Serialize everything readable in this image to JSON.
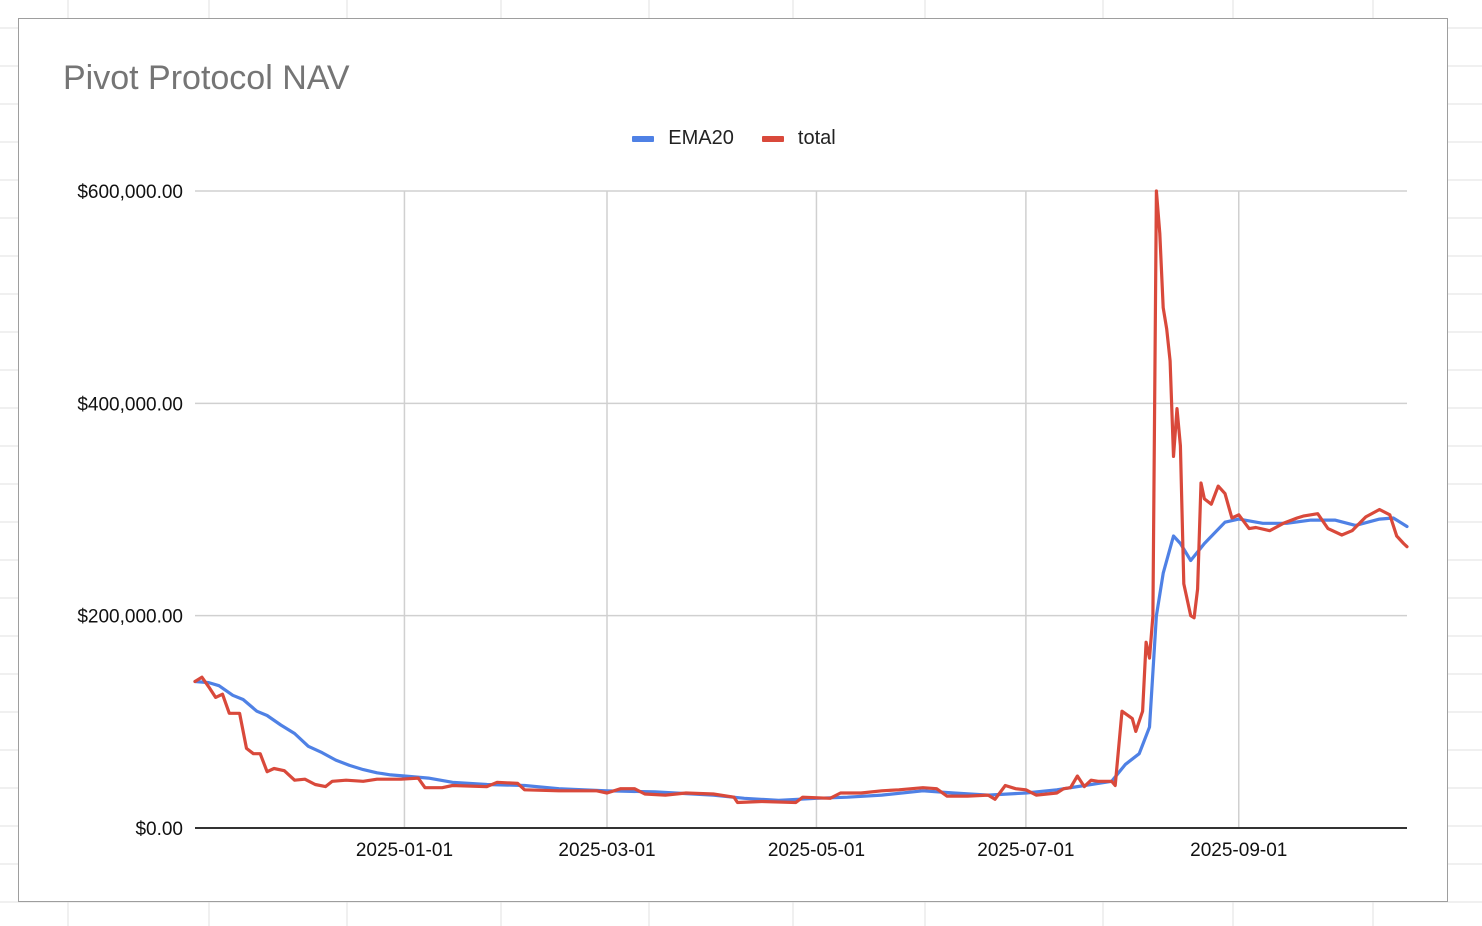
{
  "chart_data": {
    "type": "line",
    "title": "Pivot Protocol NAV",
    "xlabel": "",
    "ylabel": "",
    "x_range": [
      "2024-11-01",
      "2025-10-20"
    ],
    "ylim": [
      0,
      600000
    ],
    "y_ticks": [
      0,
      200000,
      400000,
      600000
    ],
    "y_tick_labels": [
      "$0.00",
      "$200,000.00",
      "$400,000.00",
      "$600,000.00"
    ],
    "x_ticks": [
      "2025-01-01",
      "2025-03-01",
      "2025-05-01",
      "2025-07-01",
      "2025-09-01"
    ],
    "x_tick_labels": [
      "2025-01-01",
      "2025-03-01",
      "2025-05-01",
      "2025-07-01",
      "2025-09-01"
    ],
    "grid": true,
    "legend_position": "top",
    "series": [
      {
        "name": "EMA20",
        "color": "#4f81e5",
        "points": [
          [
            "2024-11-01",
            138000
          ],
          [
            "2024-11-05",
            137000
          ],
          [
            "2024-11-08",
            134000
          ],
          [
            "2024-11-12",
            125000
          ],
          [
            "2024-11-15",
            121000
          ],
          [
            "2024-11-19",
            110000
          ],
          [
            "2024-11-22",
            106000
          ],
          [
            "2024-11-26",
            97000
          ],
          [
            "2024-11-30",
            89000
          ],
          [
            "2024-12-04",
            77000
          ],
          [
            "2024-12-08",
            71000
          ],
          [
            "2024-12-12",
            64000
          ],
          [
            "2024-12-16",
            59000
          ],
          [
            "2024-12-20",
            55000
          ],
          [
            "2024-12-24",
            52000
          ],
          [
            "2024-12-28",
            50000
          ],
          [
            "2025-01-01",
            49000
          ],
          [
            "2025-01-08",
            47000
          ],
          [
            "2025-01-15",
            43000
          ],
          [
            "2025-01-25",
            41000
          ],
          [
            "2025-02-05",
            40000
          ],
          [
            "2025-02-15",
            37000
          ],
          [
            "2025-03-01",
            35000
          ],
          [
            "2025-03-15",
            34000
          ],
          [
            "2025-04-01",
            31000
          ],
          [
            "2025-04-10",
            28000
          ],
          [
            "2025-04-20",
            26000
          ],
          [
            "2025-05-01",
            28000
          ],
          [
            "2025-05-10",
            29000
          ],
          [
            "2025-05-20",
            31000
          ],
          [
            "2025-06-01",
            35000
          ],
          [
            "2025-06-10",
            33000
          ],
          [
            "2025-06-20",
            31000
          ],
          [
            "2025-07-01",
            33000
          ],
          [
            "2025-07-10",
            36000
          ],
          [
            "2025-07-20",
            41000
          ],
          [
            "2025-07-26",
            44000
          ],
          [
            "2025-07-30",
            60000
          ],
          [
            "2025-08-03",
            70000
          ],
          [
            "2025-08-06",
            95000
          ],
          [
            "2025-08-08",
            200000
          ],
          [
            "2025-08-10",
            240000
          ],
          [
            "2025-08-13",
            275000
          ],
          [
            "2025-08-15",
            268000
          ],
          [
            "2025-08-18",
            252000
          ],
          [
            "2025-08-22",
            268000
          ],
          [
            "2025-08-28",
            288000
          ],
          [
            "2025-09-01",
            291000
          ],
          [
            "2025-09-08",
            287000
          ],
          [
            "2025-09-15",
            287000
          ],
          [
            "2025-09-22",
            290000
          ],
          [
            "2025-09-29",
            290000
          ],
          [
            "2025-10-05",
            285000
          ],
          [
            "2025-10-12",
            291000
          ],
          [
            "2025-10-16",
            292000
          ],
          [
            "2025-10-20",
            284000
          ]
        ]
      },
      {
        "name": "total",
        "color": "#d9493b",
        "points": [
          [
            "2024-11-01",
            138000
          ],
          [
            "2024-11-03",
            142000
          ],
          [
            "2024-11-05",
            133000
          ],
          [
            "2024-11-07",
            123000
          ],
          [
            "2024-11-09",
            126000
          ],
          [
            "2024-11-11",
            108000
          ],
          [
            "2024-11-14",
            108000
          ],
          [
            "2024-11-16",
            75000
          ],
          [
            "2024-11-18",
            70000
          ],
          [
            "2024-11-20",
            70000
          ],
          [
            "2024-11-22",
            53000
          ],
          [
            "2024-11-24",
            56000
          ],
          [
            "2024-11-27",
            54000
          ],
          [
            "2024-11-30",
            45000
          ],
          [
            "2024-12-03",
            46000
          ],
          [
            "2024-12-06",
            41000
          ],
          [
            "2024-12-09",
            39000
          ],
          [
            "2024-12-11",
            44000
          ],
          [
            "2024-12-15",
            45000
          ],
          [
            "2024-12-20",
            44000
          ],
          [
            "2024-12-24",
            46000
          ],
          [
            "2024-12-31",
            46000
          ],
          [
            "2025-01-05",
            47000
          ],
          [
            "2025-01-07",
            38000
          ],
          [
            "2025-01-12",
            38000
          ],
          [
            "2025-01-15",
            40000
          ],
          [
            "2025-01-25",
            39000
          ],
          [
            "2025-01-28",
            43000
          ],
          [
            "2025-02-03",
            42000
          ],
          [
            "2025-02-05",
            36000
          ],
          [
            "2025-02-15",
            35000
          ],
          [
            "2025-02-26",
            35000
          ],
          [
            "2025-03-01",
            33000
          ],
          [
            "2025-03-05",
            37000
          ],
          [
            "2025-03-09",
            37000
          ],
          [
            "2025-03-12",
            32000
          ],
          [
            "2025-03-18",
            31000
          ],
          [
            "2025-03-24",
            33000
          ],
          [
            "2025-04-01",
            32000
          ],
          [
            "2025-04-07",
            29000
          ],
          [
            "2025-04-08",
            24000
          ],
          [
            "2025-04-15",
            25000
          ],
          [
            "2025-04-25",
            24000
          ],
          [
            "2025-04-27",
            29000
          ],
          [
            "2025-05-05",
            28000
          ],
          [
            "2025-05-08",
            33000
          ],
          [
            "2025-05-14",
            33000
          ],
          [
            "2025-05-20",
            35000
          ],
          [
            "2025-05-25",
            36000
          ],
          [
            "2025-06-01",
            38000
          ],
          [
            "2025-06-05",
            37000
          ],
          [
            "2025-06-08",
            30000
          ],
          [
            "2025-06-14",
            30000
          ],
          [
            "2025-06-20",
            31000
          ],
          [
            "2025-06-22",
            27000
          ],
          [
            "2025-06-25",
            40000
          ],
          [
            "2025-06-28",
            37000
          ],
          [
            "2025-07-01",
            36000
          ],
          [
            "2025-07-04",
            31000
          ],
          [
            "2025-07-10",
            33000
          ],
          [
            "2025-07-12",
            37000
          ],
          [
            "2025-07-14",
            38000
          ],
          [
            "2025-07-16",
            49000
          ],
          [
            "2025-07-18",
            39000
          ],
          [
            "2025-07-20",
            45000
          ],
          [
            "2025-07-22",
            44000
          ],
          [
            "2025-07-26",
            44000
          ],
          [
            "2025-07-27",
            40000
          ],
          [
            "2025-07-29",
            110000
          ],
          [
            "2025-08-01",
            103000
          ],
          [
            "2025-08-02",
            91000
          ],
          [
            "2025-08-04",
            110000
          ],
          [
            "2025-08-05",
            175000
          ],
          [
            "2025-08-06",
            160000
          ],
          [
            "2025-08-07",
            200000
          ],
          [
            "2025-08-08",
            600000
          ],
          [
            "2025-08-09",
            560000
          ],
          [
            "2025-08-10",
            490000
          ],
          [
            "2025-08-11",
            470000
          ],
          [
            "2025-08-12",
            440000
          ],
          [
            "2025-08-13",
            350000
          ],
          [
            "2025-08-14",
            395000
          ],
          [
            "2025-08-15",
            360000
          ],
          [
            "2025-08-16",
            230000
          ],
          [
            "2025-08-18",
            200000
          ],
          [
            "2025-08-19",
            198000
          ],
          [
            "2025-08-20",
            225000
          ],
          [
            "2025-08-21",
            325000
          ],
          [
            "2025-08-22",
            310000
          ],
          [
            "2025-08-24",
            305000
          ],
          [
            "2025-08-26",
            322000
          ],
          [
            "2025-08-28",
            315000
          ],
          [
            "2025-08-30",
            292000
          ],
          [
            "2025-09-01",
            295000
          ],
          [
            "2025-09-04",
            282000
          ],
          [
            "2025-09-06",
            283000
          ],
          [
            "2025-09-10",
            280000
          ],
          [
            "2025-09-14",
            287000
          ],
          [
            "2025-09-18",
            292000
          ],
          [
            "2025-09-20",
            294000
          ],
          [
            "2025-09-24",
            296000
          ],
          [
            "2025-09-27",
            282000
          ],
          [
            "2025-10-01",
            276000
          ],
          [
            "2025-10-04",
            280000
          ],
          [
            "2025-10-08",
            293000
          ],
          [
            "2025-10-12",
            300000
          ],
          [
            "2025-10-15",
            295000
          ],
          [
            "2025-10-17",
            275000
          ],
          [
            "2025-10-19",
            268000
          ],
          [
            "2025-10-20",
            265000
          ]
        ]
      }
    ]
  }
}
